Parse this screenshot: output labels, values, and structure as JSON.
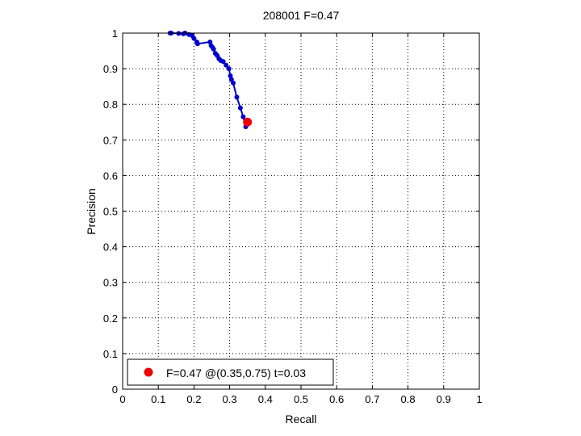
{
  "chart_data": {
    "type": "line",
    "title": "208001 F=0.47",
    "xlabel": "Recall",
    "ylabel": "Precision",
    "xlim": [
      0,
      1
    ],
    "ylim": [
      0,
      1
    ],
    "xticks": [
      "0",
      "0.1",
      "0.2",
      "0.3",
      "0.4",
      "0.5",
      "0.6",
      "0.7",
      "0.8",
      "0.9",
      "1"
    ],
    "yticks": [
      "0",
      "0.1",
      "0.2",
      "0.3",
      "0.4",
      "0.5",
      "0.6",
      "0.7",
      "0.8",
      "0.9",
      "1"
    ],
    "grid": true,
    "legend_position": "bottom-left",
    "series": [
      {
        "color": "#0000cc",
        "x": [
          0.133,
          0.136,
          0.157,
          0.17,
          0.175,
          0.186,
          0.195,
          0.2,
          0.208,
          0.21,
          0.245,
          0.248,
          0.252,
          0.255,
          0.26,
          0.265,
          0.27,
          0.275,
          0.282,
          0.29,
          0.298,
          0.302,
          0.305,
          0.31,
          0.32,
          0.33,
          0.338,
          0.345
        ],
        "y": [
          1.0,
          1.0,
          0.999,
          0.998,
          1.0,
          0.996,
          0.993,
          0.985,
          0.975,
          0.97,
          0.975,
          0.965,
          0.96,
          0.955,
          0.943,
          0.937,
          0.928,
          0.923,
          0.92,
          0.91,
          0.9,
          0.88,
          0.87,
          0.86,
          0.82,
          0.79,
          0.765,
          0.737
        ]
      }
    ],
    "marker": {
      "color": "#ee0000",
      "x": 0.35,
      "y": 0.75,
      "legend_label": "F=0.47 @(0.35,0.75) t=0.03"
    }
  }
}
